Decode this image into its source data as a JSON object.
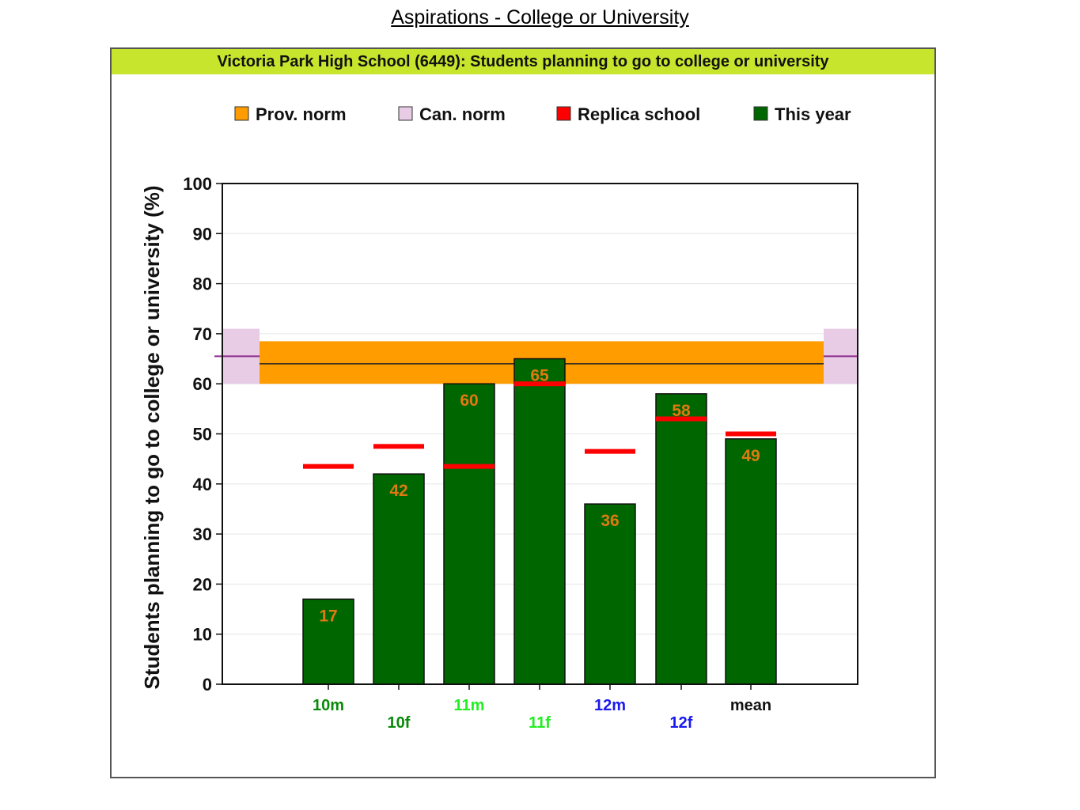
{
  "page_title": "Aspirations - College or University",
  "colors": {
    "banner": "#c7e52c",
    "prov_norm": "#ff9c00",
    "can_norm": "#e8cce6",
    "replica": "#ff0000",
    "this_year": "#006600",
    "value_label": "#e07a10",
    "cat_dark_green": "#0a8a0a",
    "cat_bright_green": "#22ee22",
    "cat_blue": "#1a1aee",
    "cat_black": "#111111"
  },
  "chart_data": {
    "type": "bar",
    "title": "Victoria Park High School (6449): Students planning to go to college or university",
    "ylabel": "Students planning to go to college or university (%)",
    "xlabel": "",
    "ylim": [
      0,
      100
    ],
    "yticks": [
      "0",
      "10",
      "20",
      "30",
      "40",
      "50",
      "60",
      "70",
      "80",
      "90",
      "100"
    ],
    "legend_placement": "top",
    "legend": [
      {
        "label": "Prov. norm",
        "color": "#ff9c00"
      },
      {
        "label": "Can. norm",
        "color": "#e8cce6"
      },
      {
        "label": "Replica school",
        "color": "#ff0000"
      },
      {
        "label": "This year",
        "color": "#006600"
      }
    ],
    "categories": [
      {
        "label": "10m",
        "color": "#0a8a0a"
      },
      {
        "label": "10f",
        "color": "#0a8a0a"
      },
      {
        "label": "11m",
        "color": "#22ee22"
      },
      {
        "label": "11f",
        "color": "#22ee22"
      },
      {
        "label": "12m",
        "color": "#1a1aee"
      },
      {
        "label": "12f",
        "color": "#1a1aee"
      },
      {
        "label": "mean",
        "color": "#111111"
      }
    ],
    "series": [
      {
        "name": "This year",
        "values": [
          17,
          42,
          60,
          65,
          36,
          58,
          49
        ],
        "labels": [
          "17",
          "42",
          "60",
          "65",
          "36",
          "58",
          "49"
        ]
      },
      {
        "name": "Replica school",
        "values": [
          43.5,
          47.5,
          43.5,
          60,
          46.5,
          53,
          50
        ]
      }
    ],
    "prov_norm": {
      "low": 60,
      "high": 68.5,
      "mean": 64
    },
    "can_norm": {
      "low": 60,
      "high": 71,
      "mean": 65.5
    },
    "grid": true
  }
}
